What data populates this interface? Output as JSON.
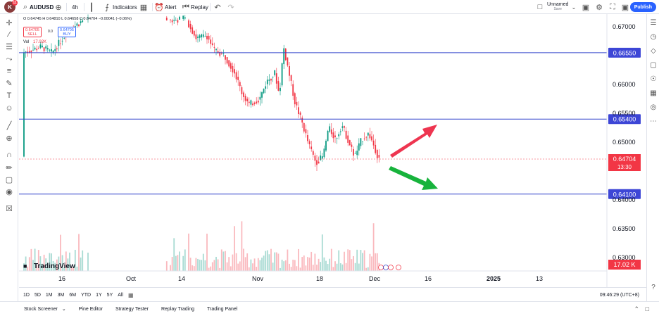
{
  "topbar": {
    "avatar": "K",
    "badge": "11",
    "symbol": "AUDUSD",
    "interval": "4h",
    "indicators": "Indicators",
    "alert": "Alert",
    "replay": "Replay",
    "layout_name": "Unnamed",
    "layout_status": "Save",
    "publish": "Publish"
  },
  "legend": {
    "ohlc": "O 0.64745  H 0.64810  L 0.64658  C 0.64704  −0.00041 (−0.06%)",
    "sell_price": "0.64705",
    "sell_label": "SELL",
    "spread": "0.0",
    "buy_price": "0.64705",
    "buy_label": "BUY",
    "vol_label": "Vol",
    "vol_value": "17.02K"
  },
  "price_axis": {
    "ticks": [
      "0.67000",
      "0.66000",
      "0.65500",
      "0.65000",
      "0.64000",
      "0.63500",
      "0.63000"
    ],
    "level_labels": [
      "0.66550",
      "0.65400",
      "0.64100"
    ],
    "last_price": "0.64704",
    "countdown": "13:30",
    "volume_label": "17.02 K"
  },
  "time_axis": {
    "ticks": [
      "16",
      "Oct",
      "14",
      "Nov",
      "18",
      "Dec",
      "16",
      "2025",
      "13"
    ]
  },
  "range_bar": {
    "ranges": [
      "1D",
      "5D",
      "1M",
      "3M",
      "6M",
      "YTD",
      "1Y",
      "5Y",
      "All"
    ],
    "clock": "09:46:29 (UTC+8)"
  },
  "bottom_tabs": [
    "Stock Screener",
    "Pine Editor",
    "Strategy Tester",
    "Replay Trading",
    "Trading Panel"
  ],
  "watermark": "TradingView",
  "colors": {
    "up": "#089981",
    "down": "#f23645",
    "level_line": "#3344cc",
    "level_label_bg": "#3d46d6",
    "price_label_bg": "#f23645",
    "arrow_up": "#ee3550",
    "arrow_down": "#17b33c",
    "accent": "#2962ff"
  },
  "chart_data": {
    "type": "candlestick",
    "symbol": "AUDUSD",
    "interval": "4h",
    "ylim": [
      0.6275,
      0.6735
    ],
    "horizontal_levels": [
      0.6655,
      0.654,
      0.641
    ],
    "last_price": 0.64704,
    "volume_last": "17.02K",
    "annotations": [
      {
        "type": "arrow",
        "direction": "up",
        "color": "green_red",
        "from": "Dec",
        "meaning": "bullish scenario"
      },
      {
        "type": "arrow",
        "direction": "down",
        "color": "green",
        "from": "Dec",
        "meaning": "bearish scenario"
      }
    ]
  }
}
